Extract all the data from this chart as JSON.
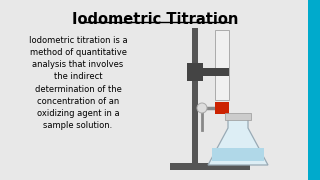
{
  "title": "Iodometric Titration",
  "title_fontsize": 10.5,
  "body_text": "Iodometric titration is a\nmethod of quantitative\nanalysis that involves\nthe indirect\ndetermination of the\nconcentration of an\noxidizing agent in a\nsample solution.",
  "body_fontsize": 6.0,
  "bg_color": "#e8e8e8",
  "text_color": "#000000",
  "stand_color": "#555555",
  "burette_edge": "#aaaaaa",
  "burette_face": "#f0f0f0",
  "clamp_color": "#444444",
  "stopcock_color": "#cc2200",
  "flask_face": "#ddeef5",
  "flask_edge": "#99aab5",
  "flask_liquid": "#b0d8e8",
  "right_border_color": "#00aacc",
  "tip_color": "#888888"
}
